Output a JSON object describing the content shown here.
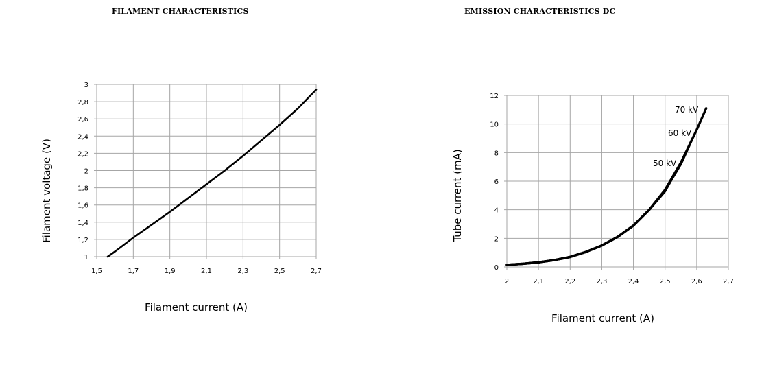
{
  "chart_data": [
    {
      "type": "line",
      "title": "FILAMENT CHARACTERISTICS",
      "xlabel": "Filament current (A)",
      "ylabel": "Filament voltage (V)",
      "xlim": [
        1.5,
        2.7
      ],
      "ylim": [
        1,
        3
      ],
      "x_ticks": [
        "1,5",
        "1,7",
        "1,9",
        "2,1",
        "2,3",
        "2,5",
        "2,7"
      ],
      "y_ticks": [
        "1",
        "1,2",
        "1,4",
        "1,6",
        "1,8",
        "2",
        "2,2",
        "2,4",
        "2,6",
        "2,8",
        "3"
      ],
      "grid": true,
      "series": [
        {
          "x": [
            1.56,
            1.6,
            1.7,
            1.8,
            1.9,
            2.0,
            2.1,
            2.2,
            2.3,
            2.4,
            2.5,
            2.6,
            2.7
          ],
          "y": [
            1.0,
            1.06,
            1.22,
            1.37,
            1.52,
            1.68,
            1.84,
            2.0,
            2.17,
            2.35,
            2.53,
            2.72,
            2.94
          ]
        }
      ]
    },
    {
      "type": "line",
      "title": "EMISSION CHARACTERISTICS DC",
      "xlabel": "Filament current (A)",
      "ylabel": "Tube current (mA)",
      "xlim": [
        2,
        2.7
      ],
      "ylim": [
        0,
        12
      ],
      "x_ticks": [
        "2",
        "2,1",
        "2,2",
        "2,3",
        "2,4",
        "2,5",
        "2,6",
        "2,7"
      ],
      "y_ticks": [
        "0",
        "2",
        "4",
        "6",
        "8",
        "10",
        "12"
      ],
      "grid": true,
      "series": [
        {
          "name": "50 kV",
          "x": [
            2.0,
            2.05,
            2.1,
            2.15,
            2.2,
            2.25,
            2.3,
            2.35,
            2.4,
            2.45,
            2.5,
            2.53,
            2.555
          ],
          "y": [
            0.15,
            0.22,
            0.32,
            0.48,
            0.7,
            1.05,
            1.5,
            2.1,
            2.9,
            4.0,
            5.3,
            6.5,
            7.5
          ]
        },
        {
          "name": "60 kV",
          "x": [
            2.0,
            2.05,
            2.1,
            2.15,
            2.2,
            2.25,
            2.3,
            2.35,
            2.4,
            2.45,
            2.5,
            2.55,
            2.585
          ],
          "y": [
            0.15,
            0.22,
            0.32,
            0.48,
            0.7,
            1.05,
            1.5,
            2.1,
            2.9,
            4.0,
            5.35,
            7.2,
            8.9
          ]
        },
        {
          "name": "70 kV",
          "x": [
            2.0,
            2.05,
            2.1,
            2.15,
            2.2,
            2.25,
            2.3,
            2.35,
            2.4,
            2.45,
            2.5,
            2.55,
            2.6,
            2.63
          ],
          "y": [
            0.15,
            0.22,
            0.32,
            0.48,
            0.7,
            1.05,
            1.5,
            2.1,
            2.9,
            4.0,
            5.4,
            7.3,
            9.6,
            11.1
          ]
        }
      ]
    }
  ]
}
